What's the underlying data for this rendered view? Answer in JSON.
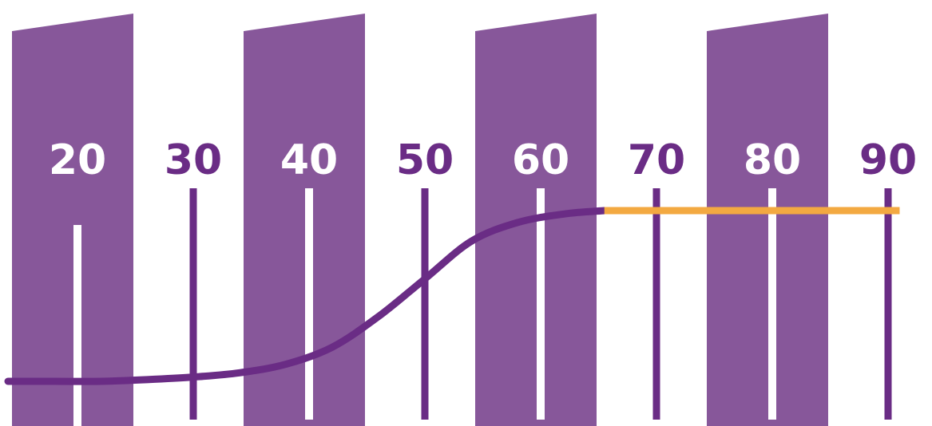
{
  "chart_data": {
    "type": "line",
    "x": [
      20,
      30,
      40,
      50,
      60,
      70,
      80,
      90
    ],
    "tick_labels": [
      "20",
      "30",
      "40",
      "50",
      "60",
      "70",
      "80",
      "90"
    ],
    "xlim": [
      14,
      91
    ],
    "ylim": [
      0,
      1
    ],
    "curve": {
      "x": [
        14,
        18,
        22,
        26,
        30,
        34,
        38,
        42,
        46,
        50,
        54,
        58,
        62,
        65.5
      ],
      "y": [
        0.0,
        0.0,
        0.0,
        0.01,
        0.025,
        0.05,
        0.1,
        0.2,
        0.38,
        0.6,
        0.82,
        0.93,
        0.98,
        1.0
      ],
      "color": "#6a2c85"
    },
    "plateau": {
      "x": [
        65.5,
        91
      ],
      "y": [
        1.0,
        1.0
      ],
      "color": "#f3a941"
    },
    "band_color": "#87579a",
    "tick_color_on_band": "#ffffff",
    "tick_color_off_band": "#6a2c85",
    "grid": false,
    "legend": "none"
  }
}
